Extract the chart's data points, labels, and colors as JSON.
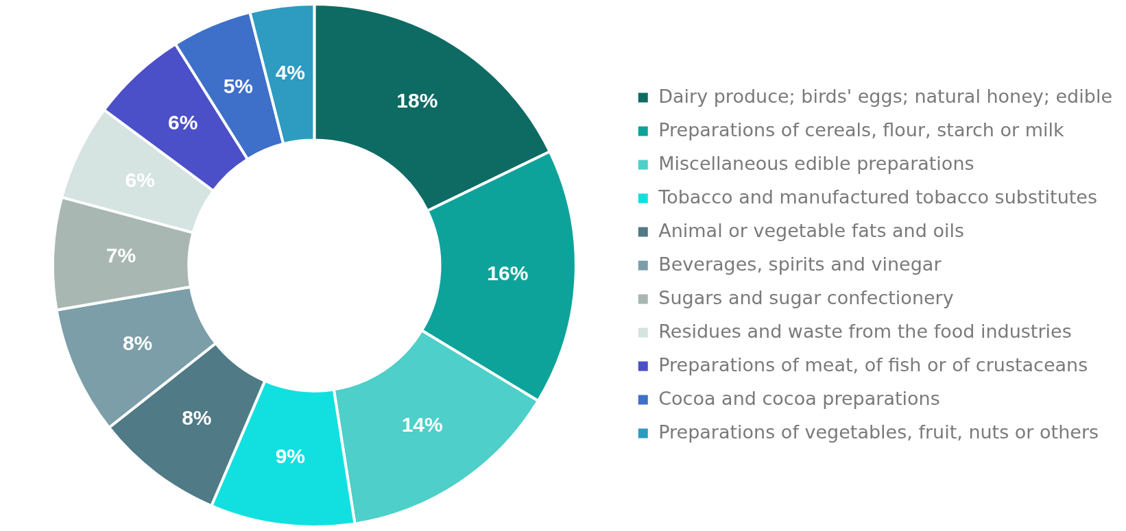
{
  "chart_data": {
    "type": "donut",
    "categories": [
      "Dairy produce; birds' eggs; natural honey; edible",
      "Preparations of cereals, flour, starch or milk",
      "Miscellaneous edible preparations",
      "Tobacco and manufactured tobacco substitutes",
      "Animal or vegetable fats and oils",
      "Beverages, spirits and vinegar",
      "Sugars and sugar confectionery",
      "Residues and waste from the food industries",
      "Preparations of meat, of fish or of crustaceans",
      "Cocoa and cocoa preparations",
      "Preparations of vegetables, fruit, nuts or others"
    ],
    "values": [
      18,
      16,
      14,
      9,
      8,
      8,
      7,
      6,
      6,
      5,
      4
    ],
    "value_labels": [
      "18%",
      "16%",
      "14%",
      "9%",
      "8%",
      "8%",
      "7%",
      "6%",
      "6%",
      "5%",
      "4%"
    ],
    "colors": [
      "#0e6b63",
      "#0ea39a",
      "#4ecfc9",
      "#12e0e0",
      "#4f7a86",
      "#7b9ea8",
      "#a9b7b3",
      "#d5e3e1",
      "#4b4fc8",
      "#3e6fc9",
      "#2e9bc0"
    ],
    "legend": "right"
  }
}
